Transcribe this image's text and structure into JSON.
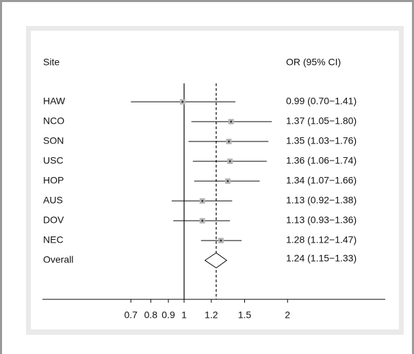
{
  "chart_data": {
    "type": "forest",
    "column_headers": [
      "Site",
      "OR (95% CI)"
    ],
    "categories": [
      "HAW",
      "NCO",
      "SON",
      "USC",
      "HOP",
      "AUS",
      "DOV",
      "NEC"
    ],
    "values": [
      0.99,
      1.37,
      1.35,
      1.36,
      1.34,
      1.13,
      1.13,
      1.28
    ],
    "lower": [
      0.7,
      1.05,
      1.03,
      1.06,
      1.07,
      0.92,
      0.93,
      1.12
    ],
    "upper": [
      1.41,
      1.8,
      1.76,
      1.74,
      1.66,
      1.38,
      1.36,
      1.47
    ],
    "value_labels": [
      "0.99 (0.70−1.41)",
      "1.37 (1.05−1.80)",
      "1.35 (1.03−1.76)",
      "1.36 (1.06−1.74)",
      "1.34 (1.07−1.66)",
      "1.13 (0.92−1.38)",
      "1.13 (0.93−1.36)",
      "1.28 (1.12−1.47)"
    ],
    "overall": {
      "label": "Overall",
      "value": 1.24,
      "lower": 1.15,
      "upper": 1.33,
      "value_label": "1.24 (1.15−1.33)"
    },
    "null_value": 1,
    "xscale": "log",
    "xlim": [
      0.387,
      3.85
    ],
    "xticks": [
      0.7,
      0.8,
      0.9,
      1,
      1.2,
      1.5,
      2
    ],
    "box_color": "#b8b8b8",
    "line_color": "#000000"
  }
}
